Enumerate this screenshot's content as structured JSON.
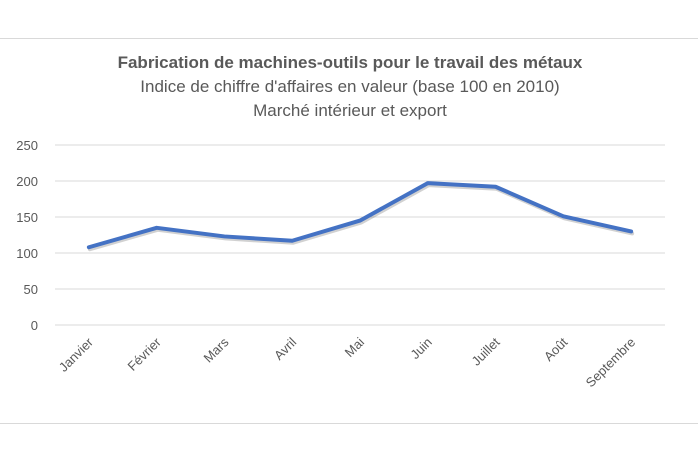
{
  "chart_data": {
    "type": "line",
    "title": "Fabrication de machines-outils pour le travail des métaux",
    "subtitle_lines": [
      "Indice de chiffre d'affaires en valeur (base 100 en 2010)",
      "Marché intérieur et export"
    ],
    "categories": [
      "Janvier",
      "Février",
      "Mars",
      "Avril",
      "Mai",
      "Juin",
      "Juillet",
      "Août",
      "Septembre"
    ],
    "series": [
      {
        "values": [
          108,
          135,
          123,
          117,
          145,
          197,
          192,
          151,
          130
        ],
        "color": "#4472c4"
      }
    ],
    "ylim": [
      0,
      250
    ],
    "yticks": [
      "0",
      "50",
      "100",
      "150",
      "200",
      "250"
    ],
    "grid": true
  }
}
